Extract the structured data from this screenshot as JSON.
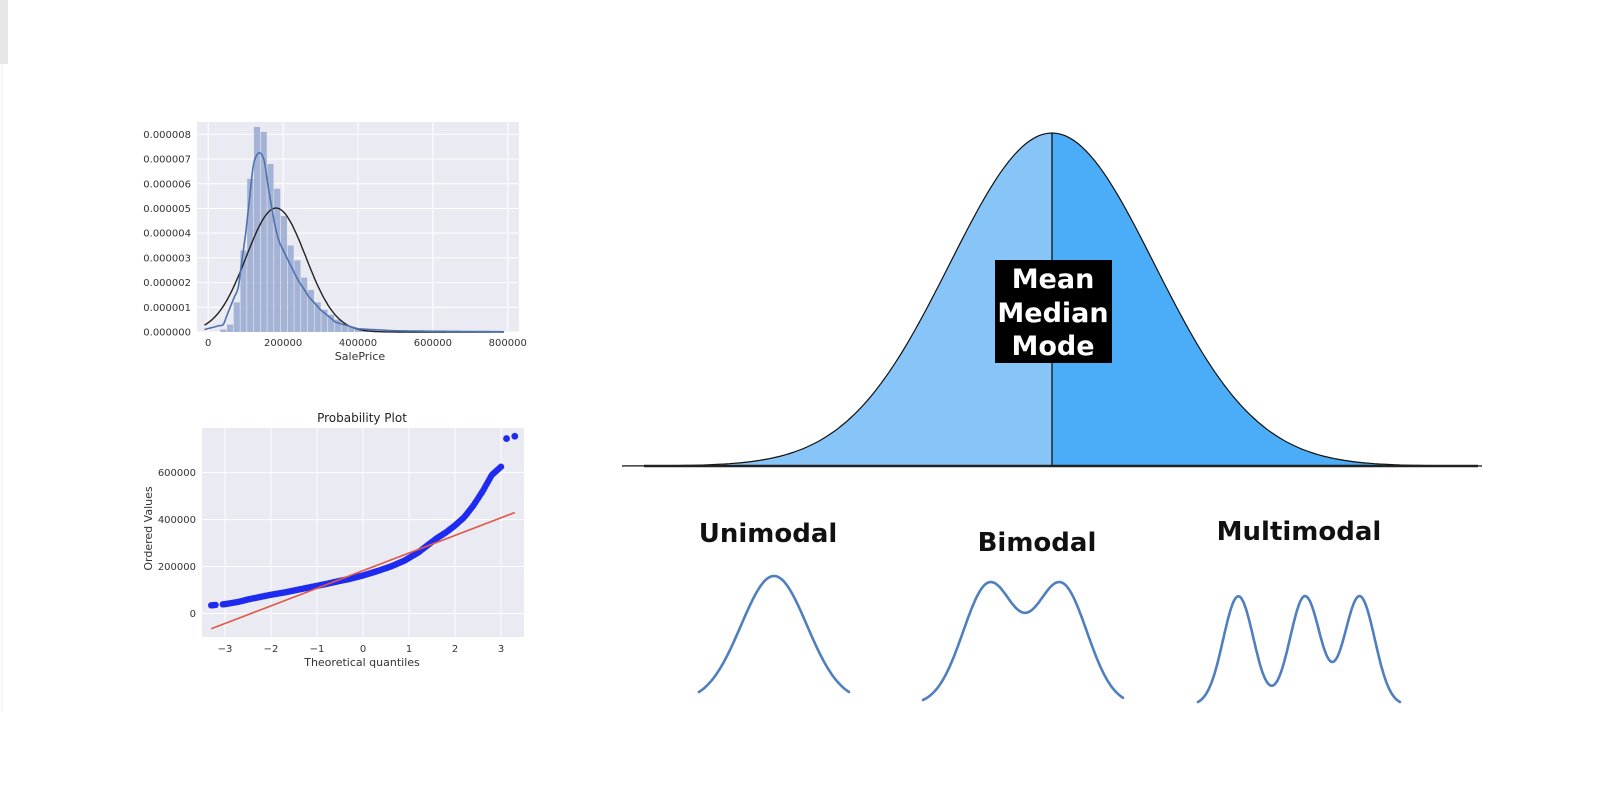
{
  "chart_data": [
    {
      "type": "histogram",
      "xlabel": "SalePrice",
      "ylabel": "",
      "xlim": [
        -30000,
        830000
      ],
      "ylim": [
        0,
        8.5e-06
      ],
      "xticks": [
        0,
        200000,
        400000,
        600000,
        800000
      ],
      "xtick_labels": [
        "0",
        "200000",
        "400000",
        "600000",
        "800000"
      ],
      "yticks": [
        0,
        1e-06,
        2e-06,
        3e-06,
        4e-06,
        5e-06,
        6e-06,
        7e-06,
        8e-06
      ],
      "ytick_labels": [
        "0.000000",
        "0.000001",
        "0.000002",
        "0.000003",
        "0.000004",
        "0.000005",
        "0.000006",
        "0.000007",
        "0.000008"
      ],
      "grid": true,
      "colors": {
        "background": "#eaeaf2",
        "bars": "#98a9d0",
        "kde": "#4c72b0",
        "normal_fit": "#222222"
      },
      "bins": [
        {
          "x0": 32000,
          "x1": 50000,
          "density": 1e-07
        },
        {
          "x0": 50000,
          "x1": 68000,
          "density": 3e-07
        },
        {
          "x0": 68000,
          "x1": 86000,
          "density": 1.2e-06
        },
        {
          "x0": 86000,
          "x1": 104000,
          "density": 3.3e-06
        },
        {
          "x0": 104000,
          "x1": 122000,
          "density": 6.2e-06
        },
        {
          "x0": 122000,
          "x1": 140000,
          "density": 8.3e-06
        },
        {
          "x0": 140000,
          "x1": 158000,
          "density": 8.1e-06
        },
        {
          "x0": 158000,
          "x1": 176000,
          "density": 6.8e-06
        },
        {
          "x0": 176000,
          "x1": 194000,
          "density": 5.8e-06
        },
        {
          "x0": 194000,
          "x1": 212000,
          "density": 4.7e-06
        },
        {
          "x0": 212000,
          "x1": 230000,
          "density": 3.5e-06
        },
        {
          "x0": 230000,
          "x1": 248000,
          "density": 2.9e-06
        },
        {
          "x0": 248000,
          "x1": 266000,
          "density": 2.2e-06
        },
        {
          "x0": 266000,
          "x1": 284000,
          "density": 1.7e-06
        },
        {
          "x0": 284000,
          "x1": 302000,
          "density": 1.2e-06
        },
        {
          "x0": 302000,
          "x1": 320000,
          "density": 9e-07
        },
        {
          "x0": 320000,
          "x1": 338000,
          "density": 7e-07
        },
        {
          "x0": 338000,
          "x1": 356000,
          "density": 5e-07
        },
        {
          "x0": 356000,
          "x1": 374000,
          "density": 3e-07
        },
        {
          "x0": 374000,
          "x1": 392000,
          "density": 2e-07
        },
        {
          "x0": 392000,
          "x1": 410000,
          "density": 1.2e-07
        },
        {
          "x0": 410000,
          "x1": 428000,
          "density": 8e-08
        },
        {
          "x0": 428000,
          "x1": 446000,
          "density": 5e-08
        },
        {
          "x0": 446000,
          "x1": 464000,
          "density": 3e-08
        }
      ],
      "kde": {
        "x": [
          -10000,
          40000,
          80000,
          100000,
          120000,
          135000,
          150000,
          165000,
          185000,
          210000,
          240000,
          270000,
          300000,
          340000,
          400000,
          500000,
          600000,
          700000,
          790000
        ],
        "y": [
          1e-07,
          3e-07,
          1.8e-06,
          4e-06,
          6.7e-06,
          7.4e-06,
          6.9e-06,
          5.4e-06,
          3.8e-06,
          3e-06,
          2.1e-06,
          1.4e-06,
          9e-07,
          4e-07,
          1.3e-07,
          5e-08,
          3e-08,
          2e-08,
          1e-08
        ]
      },
      "normal_fit": {
        "mean": 181000,
        "std": 79500,
        "xmin": -10000,
        "xmax": 790000
      }
    },
    {
      "type": "scatter",
      "title": "Probability Plot",
      "xlabel": "Theoretical quantiles",
      "ylabel": "Ordered Values",
      "xlim": [
        -3.5,
        3.5
      ],
      "ylim": [
        -100000,
        790000
      ],
      "xticks": [
        -3,
        -2,
        -1,
        0,
        1,
        2,
        3
      ],
      "xtick_labels": [
        "−3",
        "−2",
        "−1",
        "0",
        "1",
        "2",
        "3"
      ],
      "yticks": [
        0,
        200000,
        400000,
        600000
      ],
      "ytick_labels": [
        "0",
        "200000",
        "400000",
        "600000"
      ],
      "grid": true,
      "colors": {
        "background": "#eaeaf2",
        "points": "#1f2bef",
        "fit_line": "#e0584a"
      },
      "fit_line": {
        "x": [
          -3.3,
          3.3
        ],
        "y": [
          -65000,
          430000
        ]
      },
      "points_curve": {
        "x": [
          -3.3,
          -3.0,
          -2.7,
          -2.5,
          -2.2,
          -2.0,
          -1.7,
          -1.5,
          -1.2,
          -1.0,
          -0.8,
          -0.5,
          -0.3,
          0.0,
          0.3,
          0.6,
          0.9,
          1.2,
          1.4,
          1.6,
          1.8,
          2.0,
          2.2,
          2.4,
          2.6,
          2.8,
          3.0
        ],
        "y": [
          34900,
          40000,
          50000,
          60000,
          72000,
          80000,
          90000,
          98000,
          110000,
          118000,
          126000,
          139000,
          147000,
          162000,
          180000,
          200000,
          225000,
          260000,
          290000,
          320000,
          345000,
          375000,
          410000,
          460000,
          520000,
          590000,
          625000
        ]
      },
      "outliers": [
        {
          "x": 3.12,
          "y": 745000
        },
        {
          "x": 3.3,
          "y": 755000
        }
      ]
    },
    {
      "type": "area",
      "series": [
        {
          "name": "",
          "distribution": "normal",
          "mean": 0,
          "std": 1,
          "xlim": [
            -4.2,
            4.2
          ]
        }
      ],
      "annotations": [
        "Mean",
        "Median",
        "Mode"
      ],
      "colors": {
        "left_fill": "#87c4f8",
        "right_fill": "#4badf7",
        "outline": "#111111"
      }
    },
    {
      "type": "line",
      "series": [
        {
          "name": "Unimodal",
          "peaks": [
            [
              0.5,
              1.0
            ]
          ],
          "sigma": 0.22
        },
        {
          "name": "Bimodal",
          "peaks": [
            [
              0.33,
              1.0
            ],
            [
              0.69,
              1.0
            ]
          ],
          "sigma": 0.13
        },
        {
          "name": "Multimodal",
          "peaks": [
            [
              0.2,
              1.0
            ],
            [
              0.53,
              1.0
            ],
            [
              0.8,
              1.0
            ]
          ],
          "sigma": 0.075
        }
      ],
      "colors": {
        "line": "#4f7fbf"
      }
    }
  ]
}
